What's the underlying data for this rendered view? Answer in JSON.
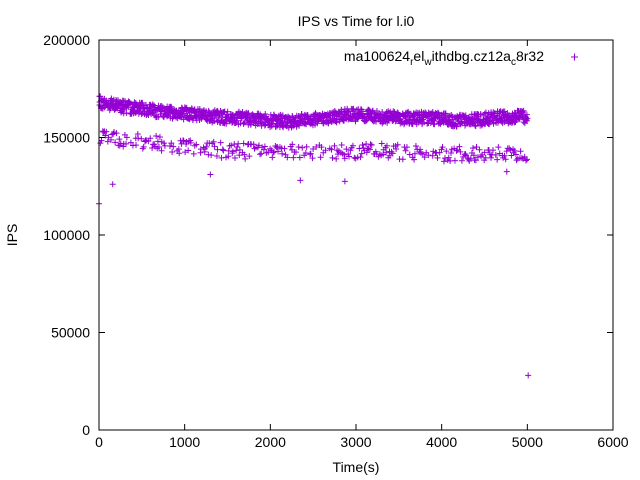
{
  "chart_data": {
    "type": "scatter",
    "title": "IPS vs Time for l.i0",
    "xlabel": "Time(s)",
    "ylabel": "IPS",
    "xlim": [
      0,
      6000
    ],
    "ylim": [
      0,
      200000
    ],
    "xticks": [
      0,
      1000,
      2000,
      3000,
      4000,
      5000,
      6000
    ],
    "yticks": [
      0,
      50000,
      100000,
      150000,
      200000
    ],
    "xtick_labels": [
      "0",
      "1000",
      "2000",
      "3000",
      "4000",
      "5000",
      "6000"
    ],
    "ytick_labels": [
      "0",
      "50000",
      "100000",
      "150000",
      "200000"
    ],
    "grid": false,
    "legend_position": "top-right",
    "marker": "+",
    "series": [
      {
        "legend": {
          "base": "ma100624",
          "parts": [
            {
              "sub": "r",
              "text": "el"
            },
            {
              "sub": "w",
              "text": "ithdbg.cz12a"
            },
            {
              "sub": "c",
              "text": "8r32"
            }
          ]
        },
        "color": "#9400d3",
        "upper_band": [
          [
            0,
            168000
          ],
          [
            100,
            167000
          ],
          [
            200,
            166500
          ],
          [
            300,
            165500
          ],
          [
            400,
            165000
          ],
          [
            500,
            164500
          ],
          [
            600,
            164000
          ],
          [
            700,
            163500
          ],
          [
            800,
            163000
          ],
          [
            900,
            162800
          ],
          [
            1000,
            162500
          ],
          [
            1100,
            162000
          ],
          [
            1200,
            161500
          ],
          [
            1300,
            161000
          ],
          [
            1400,
            160500
          ],
          [
            1500,
            160000
          ],
          [
            1600,
            160000
          ],
          [
            1700,
            160000
          ],
          [
            1800,
            159500
          ],
          [
            1900,
            159000
          ],
          [
            2000,
            158500
          ],
          [
            2100,
            158500
          ],
          [
            2200,
            158000
          ],
          [
            2300,
            158500
          ],
          [
            2400,
            159000
          ],
          [
            2500,
            159500
          ],
          [
            2600,
            160000
          ],
          [
            2700,
            160500
          ],
          [
            2800,
            161000
          ],
          [
            2900,
            161500
          ],
          [
            3000,
            161500
          ],
          [
            3100,
            161000
          ],
          [
            3200,
            161000
          ],
          [
            3300,
            160500
          ],
          [
            3400,
            160500
          ],
          [
            3500,
            160000
          ],
          [
            3600,
            160000
          ],
          [
            3700,
            160000
          ],
          [
            3800,
            160000
          ],
          [
            3900,
            160000
          ],
          [
            4000,
            159500
          ],
          [
            4100,
            159000
          ],
          [
            4200,
            158500
          ],
          [
            4300,
            158500
          ],
          [
            4400,
            159000
          ],
          [
            4500,
            159500
          ],
          [
            4600,
            160000
          ],
          [
            4700,
            160500
          ],
          [
            4800,
            160500
          ],
          [
            4900,
            160500
          ],
          [
            5000,
            160500
          ]
        ],
        "lower_band": [
          [
            0,
            151000
          ],
          [
            100,
            150000
          ],
          [
            200,
            149500
          ],
          [
            300,
            149000
          ],
          [
            400,
            148500
          ],
          [
            500,
            148000
          ],
          [
            600,
            147500
          ],
          [
            700,
            147000
          ],
          [
            800,
            146500
          ],
          [
            900,
            146000
          ],
          [
            1000,
            145500
          ],
          [
            1100,
            145000
          ],
          [
            1200,
            144500
          ],
          [
            1300,
            144000
          ],
          [
            1400,
            143500
          ],
          [
            1500,
            143500
          ],
          [
            1600,
            143500
          ],
          [
            1700,
            143000
          ],
          [
            1800,
            143000
          ],
          [
            1900,
            142500
          ],
          [
            2000,
            142500
          ],
          [
            2100,
            142500
          ],
          [
            2200,
            142500
          ],
          [
            2300,
            142500
          ],
          [
            2400,
            142500
          ],
          [
            2500,
            142500
          ],
          [
            2600,
            142500
          ],
          [
            2700,
            142500
          ],
          [
            2800,
            143000
          ],
          [
            2900,
            143000
          ],
          [
            3000,
            143000
          ],
          [
            3100,
            143000
          ],
          [
            3200,
            143000
          ],
          [
            3300,
            143000
          ],
          [
            3400,
            143000
          ],
          [
            3500,
            142500
          ],
          [
            3600,
            142500
          ],
          [
            3700,
            142500
          ],
          [
            3800,
            142000
          ],
          [
            3900,
            142000
          ],
          [
            4000,
            141500
          ],
          [
            4100,
            141500
          ],
          [
            4200,
            141500
          ],
          [
            4300,
            141500
          ],
          [
            4400,
            141500
          ],
          [
            4500,
            141500
          ],
          [
            4600,
            142000
          ],
          [
            4700,
            142000
          ],
          [
            4800,
            142000
          ],
          [
            4900,
            142000
          ],
          [
            5000,
            142000
          ]
        ],
        "outliers": [
          [
            0,
            116000
          ],
          [
            160,
            126000
          ],
          [
            1300,
            131000
          ],
          [
            2350,
            128000
          ],
          [
            2870,
            127500
          ],
          [
            4760,
            132500
          ],
          [
            5010,
            28000
          ]
        ]
      }
    ]
  }
}
